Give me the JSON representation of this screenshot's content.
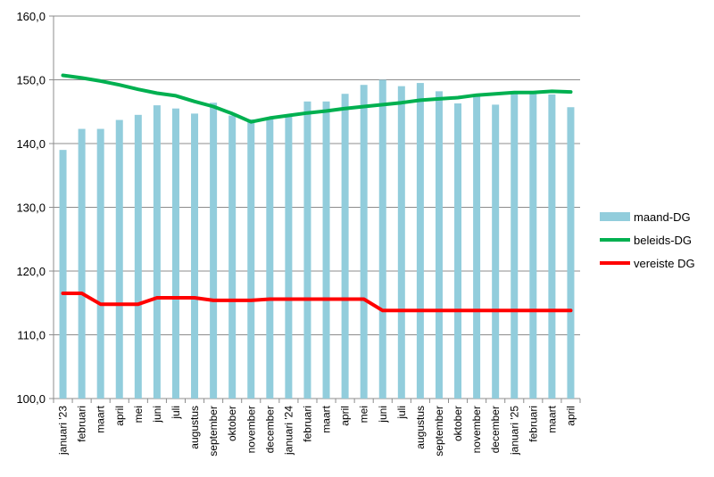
{
  "chart_data": {
    "type": "bar",
    "categories": [
      "januari '23",
      "februari",
      "maart",
      "april",
      "mei",
      "juni",
      "juli",
      "augustus",
      "september",
      "oktober",
      "november",
      "december",
      "januari '24",
      "februari",
      "maart",
      "april",
      "mei",
      "juni",
      "juli",
      "augustus",
      "september",
      "oktober",
      "november",
      "december",
      "januari '25",
      "februari",
      "maart",
      "april"
    ],
    "series": [
      {
        "name": "maand-DG",
        "type": "bar",
        "color": "#92cddc",
        "values": [
          139.0,
          142.3,
          142.3,
          143.7,
          144.5,
          146.0,
          145.5,
          144.7,
          146.4,
          144.4,
          143.8,
          143.8,
          144.3,
          146.6,
          146.6,
          147.8,
          149.2,
          150.0,
          149.0,
          149.5,
          148.2,
          146.3,
          147.5,
          146.1,
          147.9,
          148.2,
          147.7,
          145.7
        ]
      },
      {
        "name": "beleids-DG",
        "type": "line",
        "color": "#00b050",
        "values": [
          150.7,
          150.3,
          149.8,
          149.2,
          148.5,
          147.9,
          147.5,
          146.6,
          145.8,
          144.7,
          143.4,
          144.0,
          144.4,
          144.8,
          145.1,
          145.5,
          145.8,
          146.1,
          146.4,
          146.8,
          147.0,
          147.2,
          147.6,
          147.8,
          148.0,
          148.0,
          148.2,
          148.1
        ]
      },
      {
        "name": "vereiste DG",
        "type": "line",
        "color": "#ff0000",
        "values": [
          116.5,
          116.5,
          114.8,
          114.8,
          114.8,
          115.8,
          115.8,
          115.8,
          115.4,
          115.4,
          115.4,
          115.6,
          115.6,
          115.6,
          115.6,
          115.6,
          115.6,
          113.8,
          113.8,
          113.8,
          113.8,
          113.8,
          113.8,
          113.8,
          113.8,
          113.8,
          113.8,
          113.8
        ]
      }
    ],
    "ylim": [
      100,
      160
    ],
    "yticks": [
      "100,0",
      "110,0",
      "120,0",
      "130,0",
      "140,0",
      "150,0",
      "160,0"
    ],
    "grid": true,
    "legend": "right"
  }
}
